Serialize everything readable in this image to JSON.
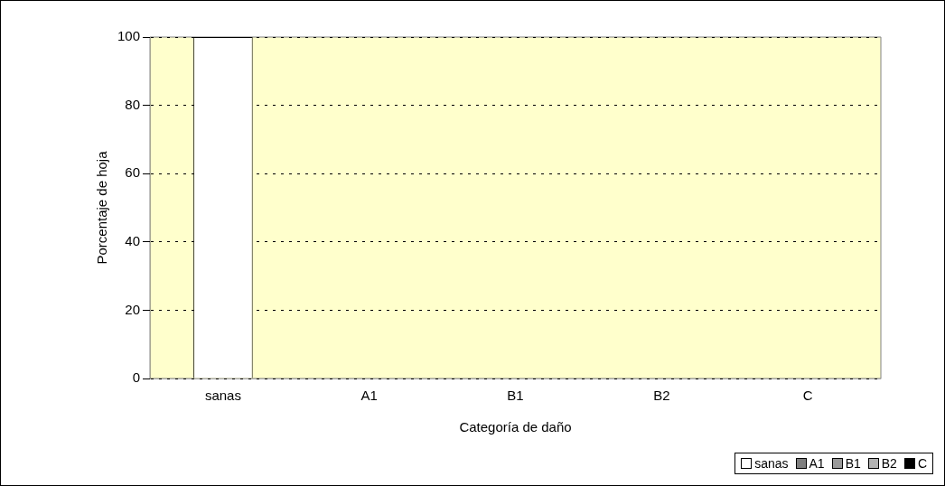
{
  "chart_data": {
    "type": "bar",
    "xlabel": "Categoría de daño",
    "ylabel": "Porcentaje de hoja",
    "categories": [
      "sanas",
      "A1",
      "B1",
      "B2",
      "C"
    ],
    "series": [
      {
        "name": "sanas",
        "color": "#ffffff",
        "values": [
          100,
          null,
          null,
          null,
          null
        ]
      },
      {
        "name": "A1",
        "color": "#7f7f7f",
        "values": [
          null,
          0,
          null,
          null,
          null
        ]
      },
      {
        "name": "B1",
        "color": "#999999",
        "values": [
          null,
          null,
          0,
          null,
          null
        ]
      },
      {
        "name": "B2",
        "color": "#b2b2b2",
        "values": [
          null,
          null,
          null,
          0,
          null
        ]
      },
      {
        "name": "C",
        "color": "#000000",
        "values": [
          null,
          null,
          null,
          null,
          0
        ]
      }
    ],
    "ylim": [
      0,
      100
    ],
    "yticks": [
      0,
      20,
      40,
      60,
      80,
      100
    ],
    "grid": "y",
    "legend": "bottom right"
  }
}
